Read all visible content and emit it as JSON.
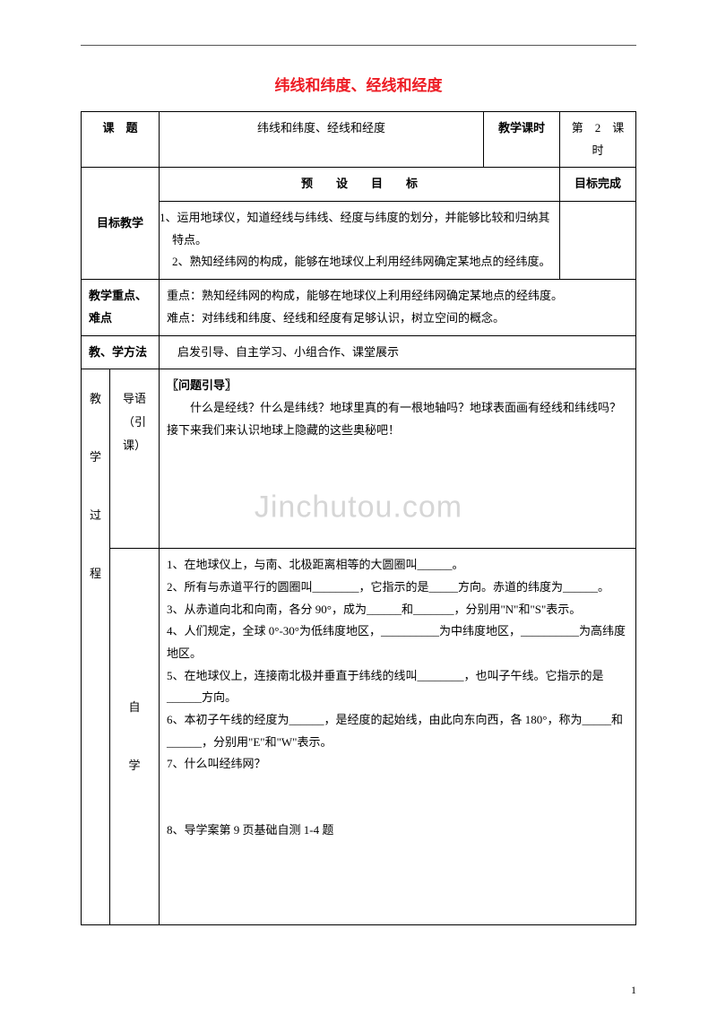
{
  "colors": {
    "title": "#ed1c24",
    "watermark": "#d6d6d6",
    "border": "#000000",
    "text": "#000000",
    "bg": "#ffffff"
  },
  "title": "纬线和纬度、经线和经度",
  "watermark": "Jinchutou.com",
  "pagenum": "1",
  "row_topic": {
    "label": "课　题",
    "value": "纬线和纬度、经线和经度",
    "period_label": "教学课时",
    "period_value": "第　2　课时"
  },
  "row_goal": {
    "label": "目标教学",
    "preset_header": "预　　设　　目　　标",
    "done_header": "目标完成",
    "items": "1、运用地球仪，知道经线与纬线、经度与纬度的划分，并能够比较和归纳其特点。\n2、熟知经纬网的构成，能够在地球仪上利用经纬网确定某地点的经纬度。"
  },
  "row_focus": {
    "label": "教学重点、难点",
    "value": "重点：熟知经纬网的构成，能够在地球仪上利用经纬网确定某地点的经纬度。\n难点：对纬线和纬度、经线和经度有足够认识，树立空间的概念。"
  },
  "row_method": {
    "label": "教、学方法",
    "value": "启发引导、自主学习、小组合作、课堂展示"
  },
  "row_intro": {
    "side": "导语（引课）",
    "heading": "〖问题引导〗",
    "body": "什么是经线？什么是纬线？地球里真的有一根地轴吗？地球表面画有经线和纬线吗？接下来我们来认识地球上隐藏的这些奥秘吧！"
  },
  "row_self": {
    "vert": "教\n学\n过\n程",
    "side": "自\n\n学",
    "lines": [
      "1、在地球仪上，与南、北极距离相等的大圆圈叫______。",
      "2、所有与赤道平行的圆圈叫________，它指示的是_____方向。赤道的纬度为______。",
      "3、从赤道向北和向南，各分 90°，成为______和_______，分别用\"N\"和\"S\"表示。",
      "4、人们规定，全球 0°-30°为低纬度地区，__________为中纬度地区，__________为高纬度地区。",
      "5、在地球仪上，连接南北极并垂直于纬线的线叫________，也叫子午线。它指示的是______方向。",
      "6、本初子午线的经度为______，是经度的起始线，由此向东向西，各 180°，称为_____和______，分别用\"E\"和\"W\"表示。",
      "7、什么叫经纬网？",
      "",
      "",
      "8、导学案第 9 页基础自测 1-4 题"
    ]
  }
}
